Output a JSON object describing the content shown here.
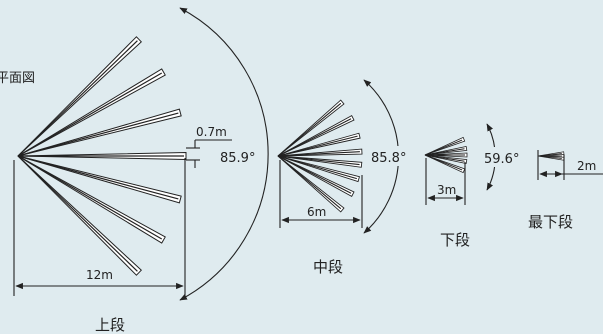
{
  "diagram": {
    "title": "平面図",
    "upper": {
      "name": "上段",
      "angle_label": "85.9°",
      "length_label": "12m",
      "gap_label": "0.7m"
    },
    "middle": {
      "name": "中段",
      "angle_label": "85.8°",
      "length_label": "6m"
    },
    "lower": {
      "name": "下段",
      "angle_label": "59.6°",
      "length_label": "3m"
    },
    "bottom": {
      "name": "最下段",
      "length_label": "2m"
    },
    "colors": {
      "background": "#dfebef",
      "line": "#222222",
      "beam_fill": "#ffffff"
    }
  }
}
